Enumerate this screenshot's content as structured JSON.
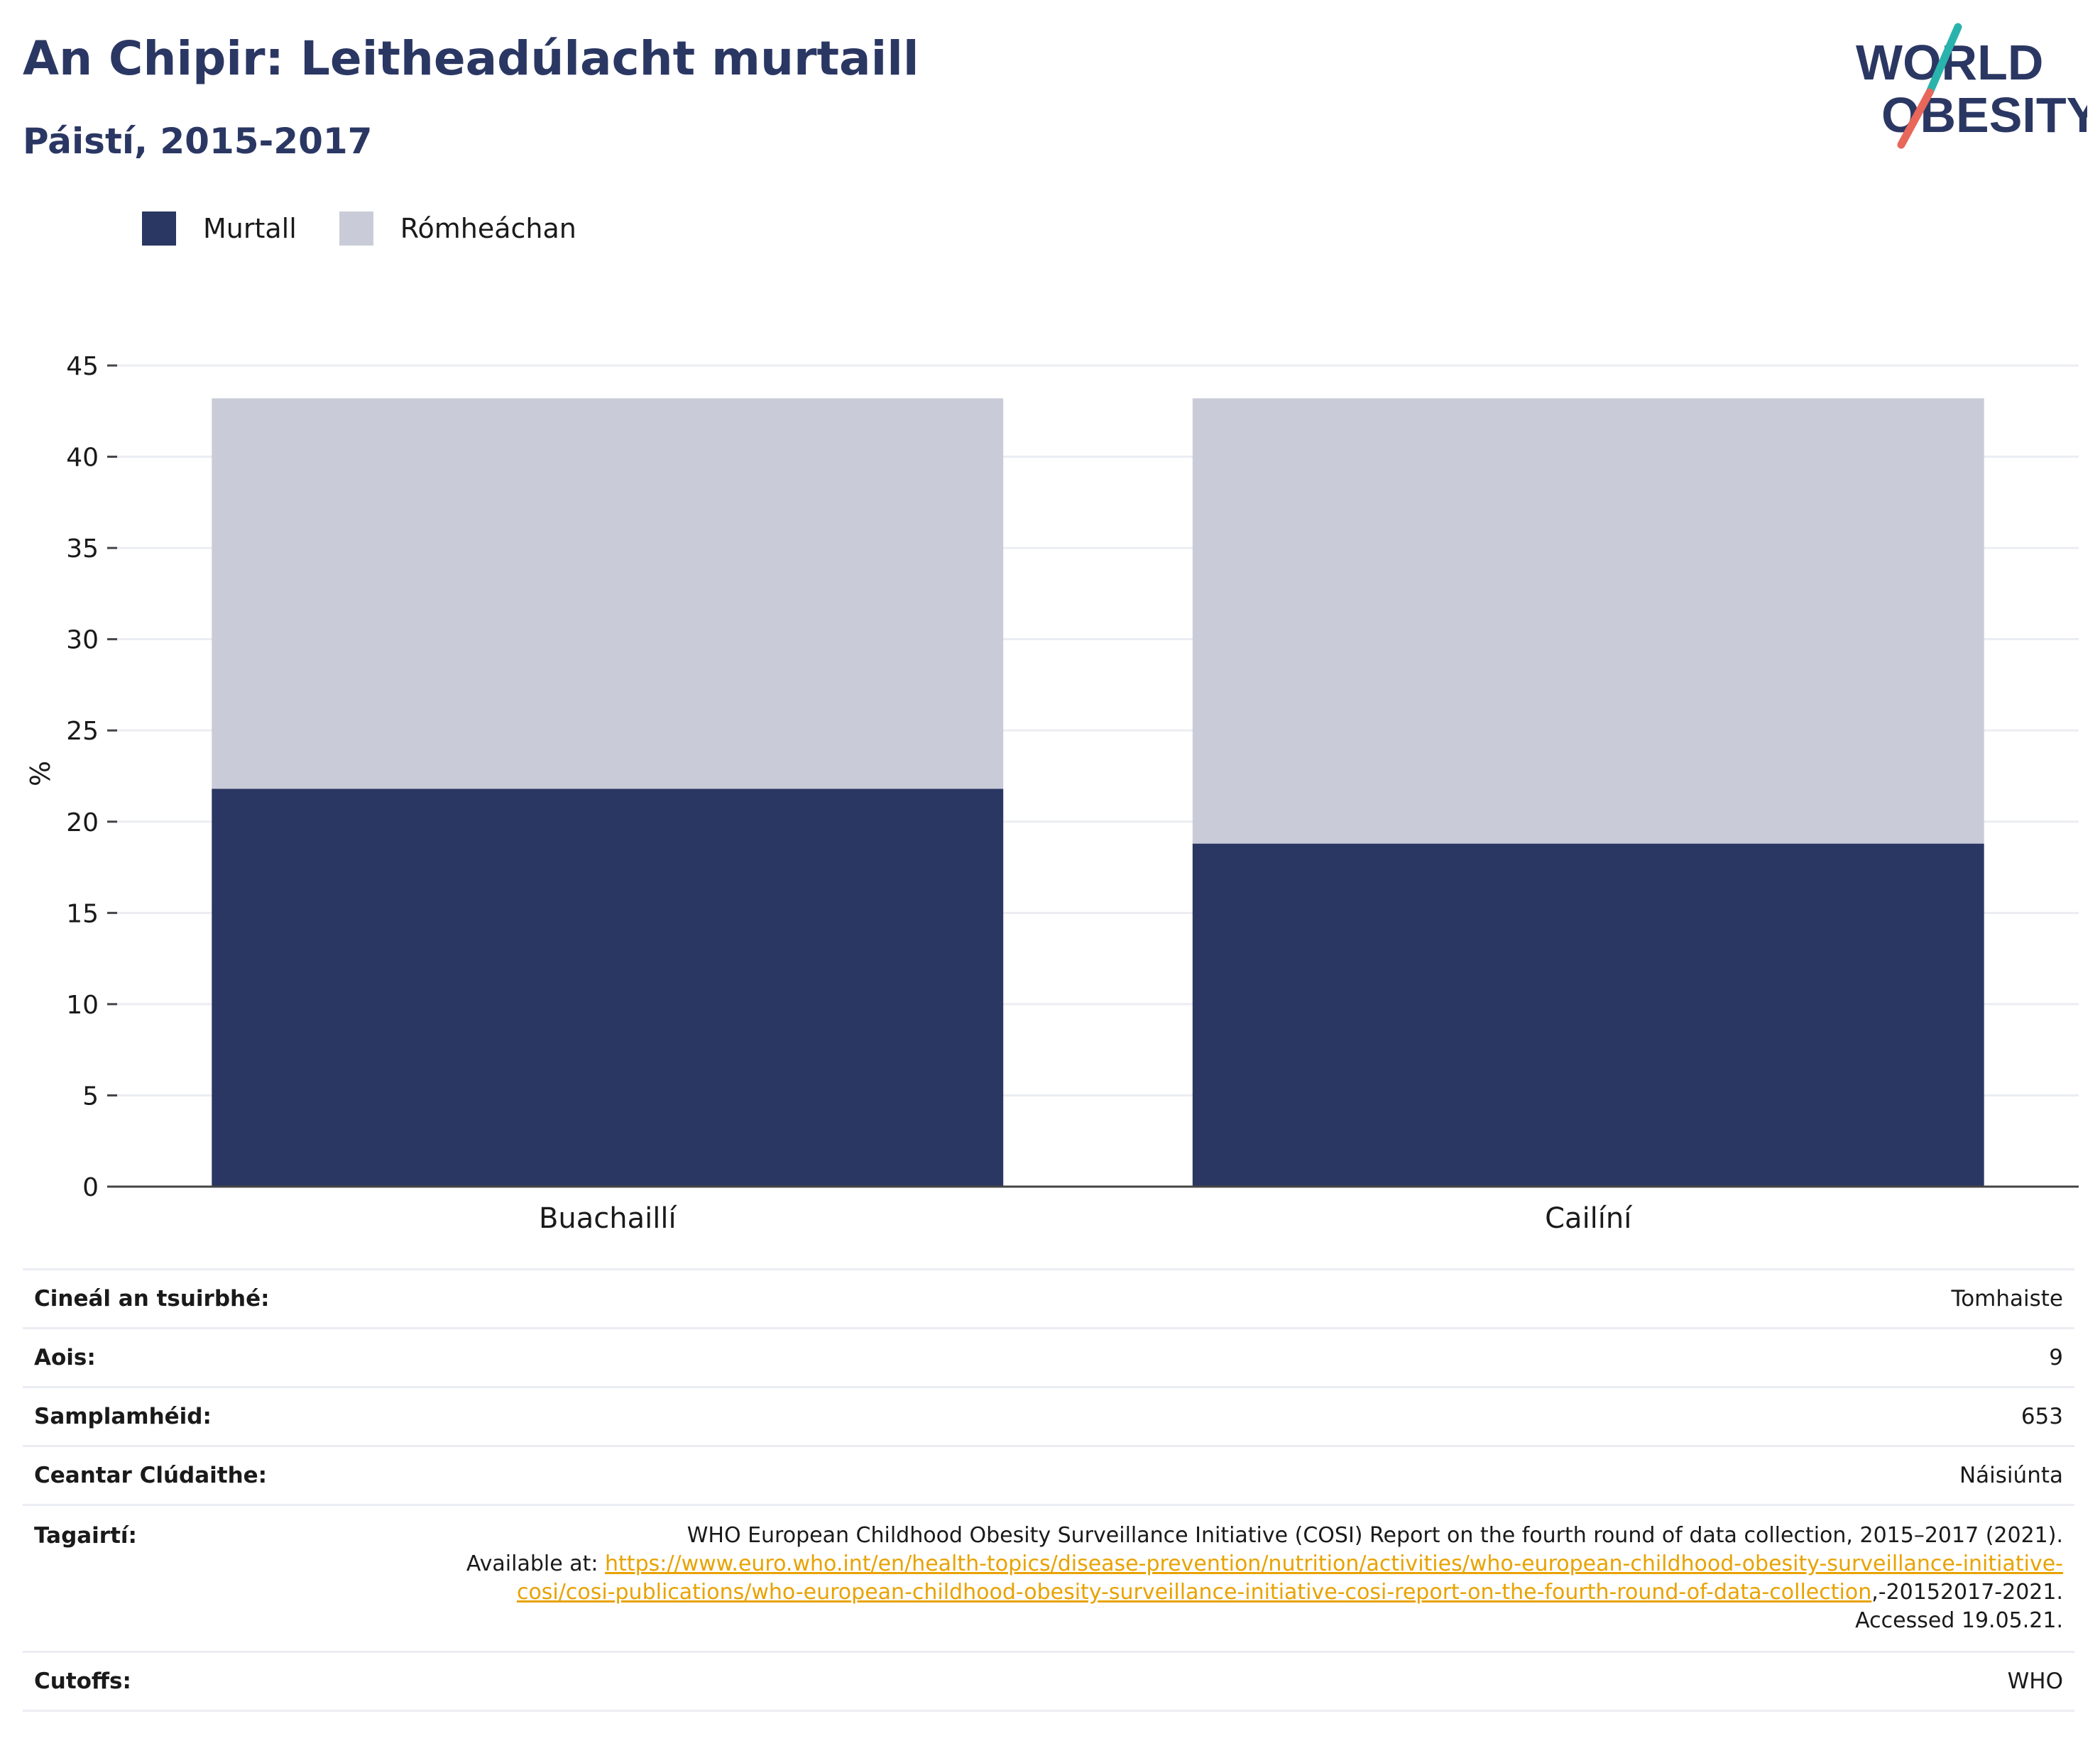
{
  "header": {
    "title": "An Chipir: Leitheadúlacht murtaill",
    "subtitle": "Páistí, 2015-2017"
  },
  "logo": {
    "line1": "WORLD",
    "line2": "OBESITY",
    "colors": {
      "text": "#2b3763",
      "slash_top": "#2ab3ad",
      "slash_bottom": "#e8665a"
    }
  },
  "colors": {
    "obese": "#2b3763",
    "overweight": "#c9ccd8",
    "grid": "#ebedf3",
    "axis": "#444444"
  },
  "legend": [
    {
      "label": "Murtall",
      "color": "#2b3763"
    },
    {
      "label": "Rómheáchan",
      "color": "#c9ccd8"
    }
  ],
  "chart_data": {
    "type": "bar",
    "stacked": true,
    "categories": [
      "Buachaillí",
      "Cailíní"
    ],
    "series": [
      {
        "name": "Murtall",
        "values": [
          21.8,
          18.8
        ],
        "color": "#2b3763"
      },
      {
        "name": "Rómheáchan",
        "values": [
          21.4,
          24.4
        ],
        "color": "#c9ccd8"
      }
    ],
    "ylabel": "%",
    "ylim": [
      0,
      45
    ],
    "yticks": [
      0,
      5,
      10,
      15,
      20,
      25,
      30,
      35,
      40,
      45
    ],
    "grid": true,
    "legend_position": "top-left"
  },
  "info": {
    "rows": [
      {
        "key": "Cineál an tsuirbhé:",
        "value": "Tomhaiste"
      },
      {
        "key": "Aois:",
        "value": "9"
      },
      {
        "key": "Samplamhéid:",
        "value": "653"
      },
      {
        "key": "Ceantar Clúdaithe:",
        "value": "Náisiúnta"
      }
    ],
    "reference": {
      "key": "Tagairtí:",
      "line1": "WHO European Childhood Obesity Surveillance Initiative (COSI) Report on the fourth round of data collection, 2015–2017 (2021).",
      "available_prefix": "Available at: ",
      "link": "https://www.euro.who.int/en/health-topics/disease-prevention/nutrition/activities/who-european-childhood-obesity-surveillance-initiative-cosi/cosi-publications/who-european-childhood-obesity-surveillance-initiative-cosi-report-on-the-fourth-round-of-data-collection",
      "suffix": ",-20152017-2021. Accessed 19.05.21."
    },
    "cutoffs": {
      "key": "Cutoffs:",
      "value": "WHO"
    }
  }
}
